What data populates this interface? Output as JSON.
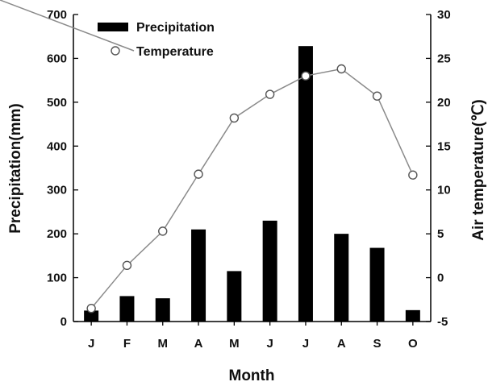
{
  "chart_data": {
    "type": "bar",
    "categories": [
      "J",
      "F",
      "M",
      "A",
      "M",
      "J",
      "J",
      "A",
      "S",
      "O"
    ],
    "series": [
      {
        "name": "Precipitation",
        "type": "bar",
        "axis": "left",
        "values": [
          25,
          58,
          53,
          210,
          115,
          230,
          628,
          200,
          168,
          26
        ]
      },
      {
        "name": "Temperature",
        "type": "line",
        "axis": "right",
        "values": [
          -3.5,
          1.4,
          5.3,
          11.8,
          18.2,
          20.9,
          23.0,
          23.8,
          20.7,
          11.7
        ]
      }
    ],
    "xlabel": "Month",
    "ylabel": "Precipitation(mm)",
    "y2label": "Air temperature(℃)",
    "ylim": [
      0,
      700
    ],
    "y2lim": [
      -5,
      30
    ],
    "yticks": [
      "0",
      "100",
      "200",
      "300",
      "400",
      "500",
      "600",
      "700"
    ],
    "y2ticks": [
      "-5",
      "0",
      "5",
      "10",
      "15",
      "20",
      "25",
      "30"
    ],
    "legend_position": "top-left",
    "grid": false,
    "colors": {
      "bar": "#000000",
      "line": "#8a8a8a",
      "marker_fill": "#ffffff"
    }
  }
}
